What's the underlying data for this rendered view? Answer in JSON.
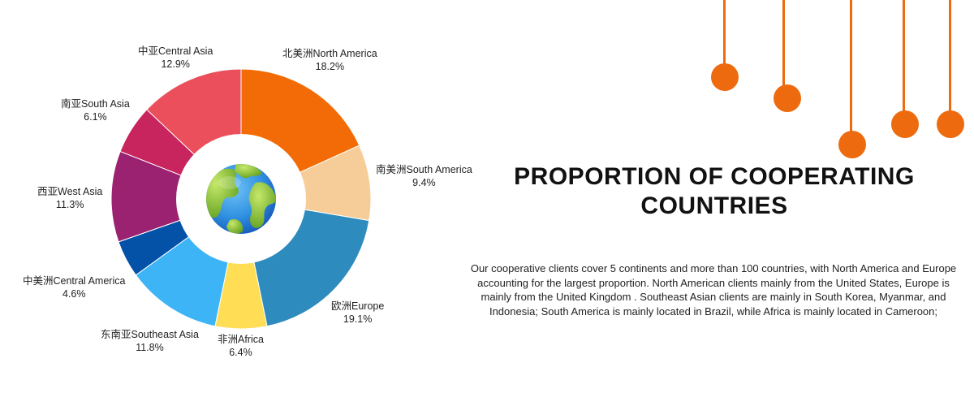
{
  "chart_data": {
    "type": "pie",
    "slices": [
      {
        "name": "北美洲North America",
        "value": 18.2,
        "label": "18.2%",
        "color": "#f26b06"
      },
      {
        "name": "南美洲South America",
        "value": 9.4,
        "label": "9.4%",
        "color": "#f6cd98"
      },
      {
        "name": "欧洲Europe",
        "value": 19.1,
        "label": "19.1%",
        "color": "#2e8bbd"
      },
      {
        "name": "非洲Africa",
        "value": 6.4,
        "label": "6.4%",
        "color": "#ffdd55"
      },
      {
        "name": "东南亚Southeast Asia",
        "value": 11.8,
        "label": "11.8%",
        "color": "#3cb4f5"
      },
      {
        "name": "中美洲Central America",
        "value": 4.6,
        "label": "4.6%",
        "color": "#0352a8"
      },
      {
        "name": "西亚West Asia",
        "value": 11.3,
        "label": "11.3%",
        "color": "#9b2270"
      },
      {
        "name": "南亚South Asia",
        "value": 6.1,
        "label": "6.1%",
        "color": "#c8255e"
      },
      {
        "name": "中亚Central Asia",
        "value": 12.9,
        "label": "12.9%",
        "color": "#ea4f5b"
      }
    ],
    "inner_icon": "globe-icon"
  },
  "heading": {
    "title_line1": "PROPORTION OF COOPERATING",
    "title_line2": "COUNTRIES"
  },
  "description": "Our cooperative clients cover 5 continents and more than 100 countries, with North America and Europe accounting for the largest proportion. North American clients mainly from the United States,  Europe is mainly from  the United Kingdom . Southeast Asian clients are mainly in South Korea, Myanmar, and Indonesia; South America is mainly located in Brazil, while Africa is mainly located in Cameroon;",
  "accent_color": "#ee6a0e"
}
